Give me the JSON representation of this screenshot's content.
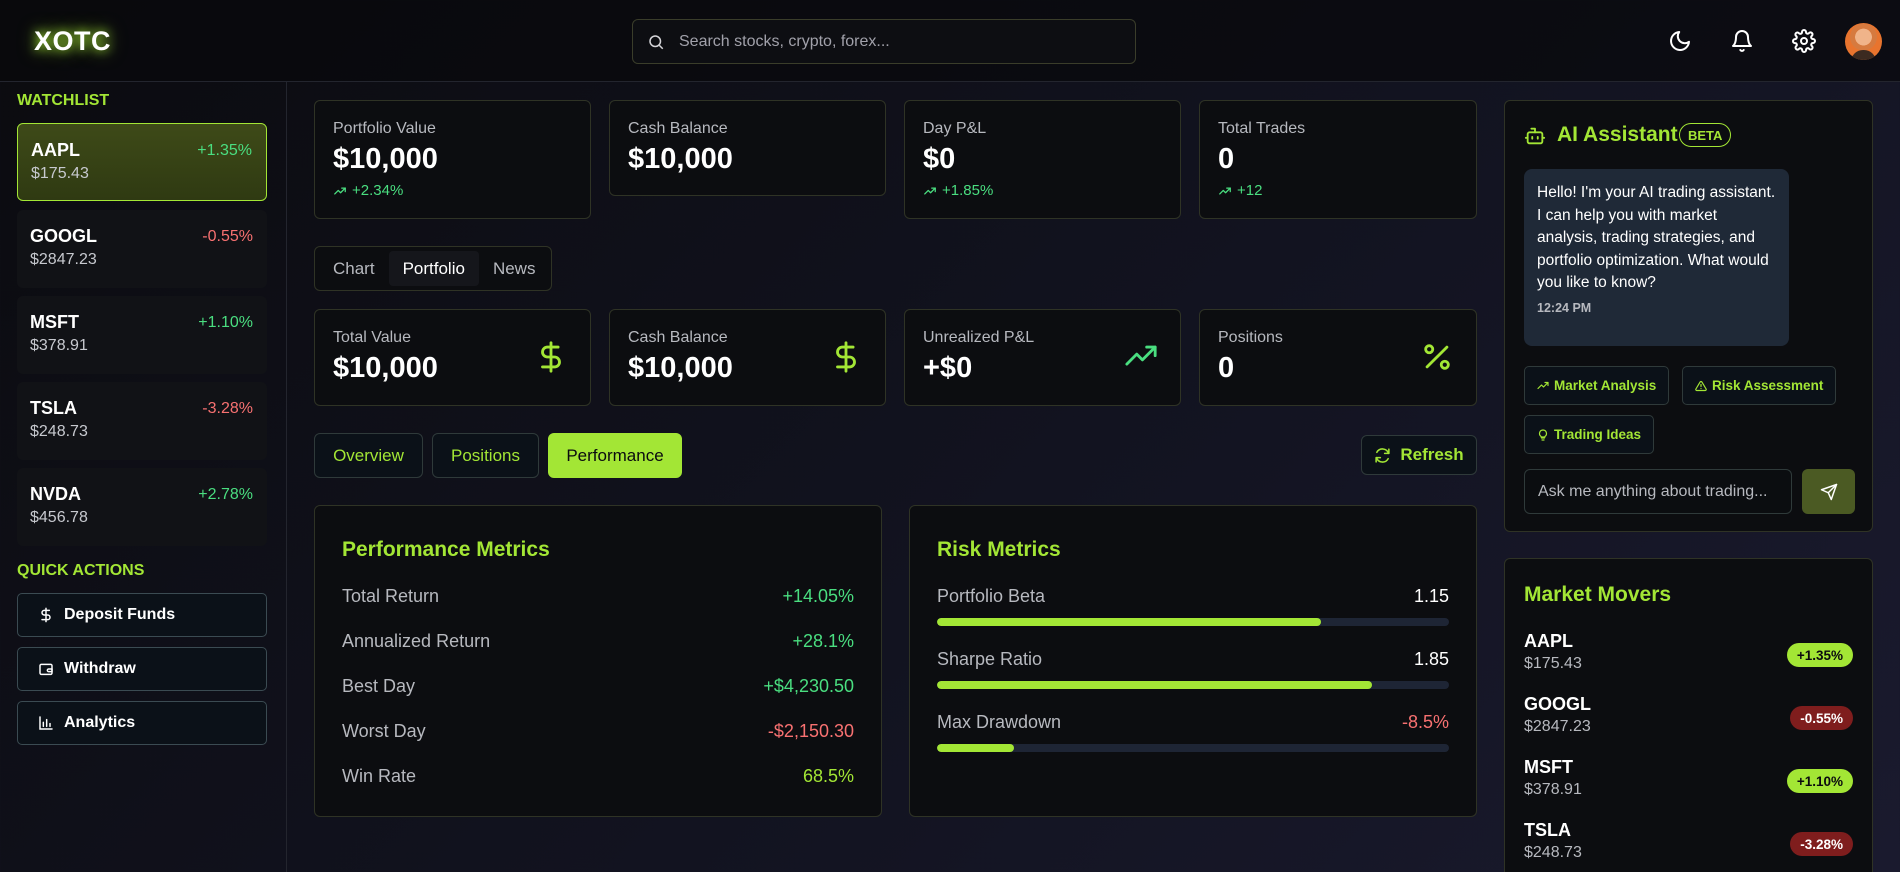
{
  "header": {
    "logo": "XOTC",
    "search_placeholder": "Search stocks, crypto, forex..."
  },
  "sidebar": {
    "watchlist_title": "WATCHLIST",
    "watchlist": [
      {
        "symbol": "AAPL",
        "price": "$175.43",
        "change": "+1.35%",
        "direction": "up"
      },
      {
        "symbol": "GOOGL",
        "price": "$2847.23",
        "change": "-0.55%",
        "direction": "down"
      },
      {
        "symbol": "MSFT",
        "price": "$378.91",
        "change": "+1.10%",
        "direction": "up"
      },
      {
        "symbol": "TSLA",
        "price": "$248.73",
        "change": "-3.28%",
        "direction": "down"
      },
      {
        "symbol": "NVDA",
        "price": "$456.78",
        "change": "+2.78%",
        "direction": "up"
      }
    ],
    "quick_actions_title": "QUICK ACTIONS",
    "quick_actions": [
      {
        "label": "Deposit Funds",
        "icon": "dollar-icon"
      },
      {
        "label": "Withdraw",
        "icon": "wallet-icon"
      },
      {
        "label": "Analytics",
        "icon": "bar-chart-icon"
      }
    ]
  },
  "stats": [
    {
      "label": "Portfolio Value",
      "value": "$10,000",
      "sub": "+2.34%"
    },
    {
      "label": "Cash Balance",
      "value": "$10,000",
      "sub": ""
    },
    {
      "label": "Day P&L",
      "value": "$0",
      "sub": "+1.85%"
    },
    {
      "label": "Total Trades",
      "value": "0",
      "sub": "+12"
    }
  ],
  "main_tabs": [
    "Chart",
    "Portfolio",
    "News"
  ],
  "main_tab_active": "Portfolio",
  "portfolio_stats": [
    {
      "label": "Total Value",
      "value": "$10,000",
      "icon": "dollar-icon"
    },
    {
      "label": "Cash Balance",
      "value": "$10,000",
      "icon": "dollar-icon"
    },
    {
      "label": "Unrealized P&L",
      "value": "+$0",
      "icon": "trending-up-icon"
    },
    {
      "label": "Positions",
      "value": "0",
      "icon": "percent-icon"
    }
  ],
  "sub_tabs": [
    "Overview",
    "Positions",
    "Performance"
  ],
  "sub_tab_active": "Performance",
  "refresh_label": "Refresh",
  "performance": {
    "title": "Performance Metrics",
    "rows": [
      {
        "label": "Total Return",
        "value": "+14.05%",
        "tone": "green"
      },
      {
        "label": "Annualized Return",
        "value": "+28.1%",
        "tone": "green"
      },
      {
        "label": "Best Day",
        "value": "+$4,230.50",
        "tone": "green"
      },
      {
        "label": "Worst Day",
        "value": "-$2,150.30",
        "tone": "red"
      },
      {
        "label": "Win Rate",
        "value": "68.5%",
        "tone": "lime"
      }
    ]
  },
  "risk": {
    "title": "Risk Metrics",
    "rows": [
      {
        "label": "Portfolio Beta",
        "value": "1.15",
        "level": 0.75,
        "tone": "white"
      },
      {
        "label": "Sharpe Ratio",
        "value": "1.85",
        "level": 0.85,
        "tone": "white"
      },
      {
        "label": "Max Drawdown",
        "value": "-8.5%",
        "level": 0.15,
        "tone": "red"
      }
    ]
  },
  "ai": {
    "title": "AI Assistant",
    "badge": "BETA",
    "message": "Hello! I'm your AI trading assistant. I can help you with market analysis, trading strategies, and portfolio optimization. What would you like to know?",
    "time": "12:24 PM",
    "chips": [
      "Market Analysis",
      "Risk Assessment",
      "Trading Ideas"
    ],
    "input_placeholder": "Ask me anything about trading..."
  },
  "market_movers": {
    "title": "Market Movers",
    "items": [
      {
        "symbol": "AAPL",
        "price": "$175.43",
        "change": "+1.35%",
        "direction": "up"
      },
      {
        "symbol": "GOOGL",
        "price": "$2847.23",
        "change": "-0.55%",
        "direction": "down"
      },
      {
        "symbol": "MSFT",
        "price": "$378.91",
        "change": "+1.10%",
        "direction": "up"
      },
      {
        "symbol": "TSLA",
        "price": "$248.73",
        "change": "-3.28%",
        "direction": "down"
      }
    ]
  },
  "colors": {
    "accent": "#a3e635",
    "up": "#4ade80",
    "down": "#f87171"
  }
}
